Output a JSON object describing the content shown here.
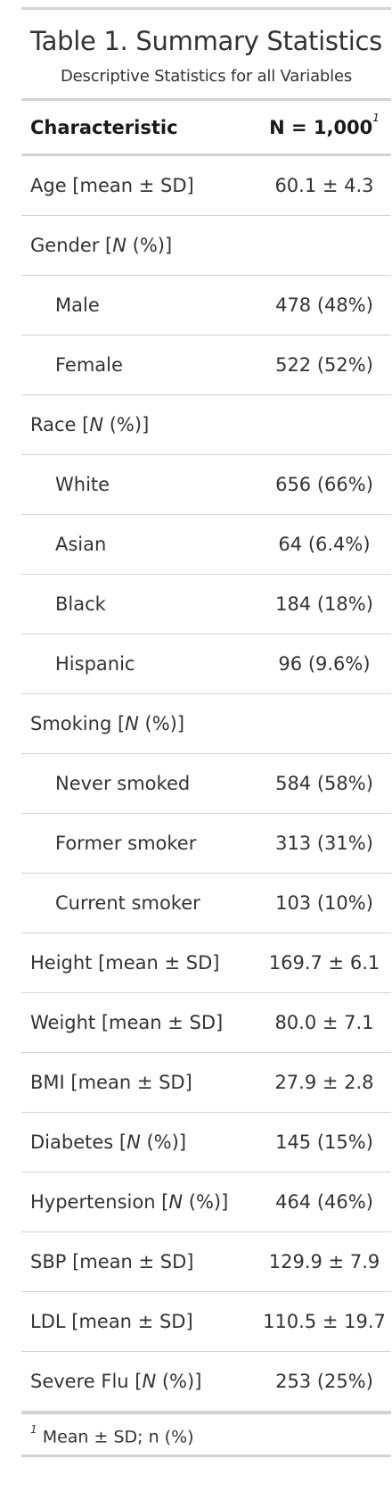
{
  "table": {
    "title": "Table 1. Summary Statistics",
    "subtitle": "Descriptive Statistics for all Variables",
    "header": {
      "label": "Characteristic",
      "value": "N = 1,000",
      "footnote_marker": "1"
    },
    "rows": [
      {
        "pre": "Age [mean ± SD]",
        "ital": "",
        "post": "",
        "value": "60.1 ± 4.3",
        "indent": false
      },
      {
        "pre": "Gender [",
        "ital": "N",
        "post": " (%)]",
        "value": "",
        "indent": false
      },
      {
        "pre": "Male",
        "ital": "",
        "post": "",
        "value": "478 (48%)",
        "indent": true
      },
      {
        "pre": "Female",
        "ital": "",
        "post": "",
        "value": "522 (52%)",
        "indent": true
      },
      {
        "pre": "Race [",
        "ital": "N",
        "post": " (%)]",
        "value": "",
        "indent": false
      },
      {
        "pre": "White",
        "ital": "",
        "post": "",
        "value": "656 (66%)",
        "indent": true
      },
      {
        "pre": "Asian",
        "ital": "",
        "post": "",
        "value": "64 (6.4%)",
        "indent": true
      },
      {
        "pre": "Black",
        "ital": "",
        "post": "",
        "value": "184 (18%)",
        "indent": true
      },
      {
        "pre": "Hispanic",
        "ital": "",
        "post": "",
        "value": "96 (9.6%)",
        "indent": true
      },
      {
        "pre": "Smoking [",
        "ital": "N",
        "post": " (%)]",
        "value": "",
        "indent": false
      },
      {
        "pre": "Never smoked",
        "ital": "",
        "post": "",
        "value": "584 (58%)",
        "indent": true
      },
      {
        "pre": "Former smoker",
        "ital": "",
        "post": "",
        "value": "313 (31%)",
        "indent": true
      },
      {
        "pre": "Current smoker",
        "ital": "",
        "post": "",
        "value": "103 (10%)",
        "indent": true
      },
      {
        "pre": "Height [mean ± SD]",
        "ital": "",
        "post": "",
        "value": "169.7 ± 6.1",
        "indent": false
      },
      {
        "pre": "Weight [mean ± SD]",
        "ital": "",
        "post": "",
        "value": "80.0 ± 7.1",
        "indent": false
      },
      {
        "pre": "BMI [mean ± SD]",
        "ital": "",
        "post": "",
        "value": "27.9 ± 2.8",
        "indent": false
      },
      {
        "pre": "Diabetes [",
        "ital": "N",
        "post": " (%)]",
        "value": "145 (15%)",
        "indent": false
      },
      {
        "pre": "Hypertension [",
        "ital": "N",
        "post": " (%)]",
        "value": "464 (46%)",
        "indent": false
      },
      {
        "pre": "SBP [mean ± SD]",
        "ital": "",
        "post": "",
        "value": "129.9 ± 7.9",
        "indent": false
      },
      {
        "pre": "LDL [mean ± SD]",
        "ital": "",
        "post": "",
        "value": "110.5 ± 19.7",
        "indent": false
      },
      {
        "pre": "Severe Flu [",
        "ital": "N",
        "post": " (%)]",
        "value": "253 (25%)",
        "indent": false
      }
    ],
    "footnote": {
      "marker": "1",
      "text": "Mean ± SD; n (%)"
    }
  }
}
